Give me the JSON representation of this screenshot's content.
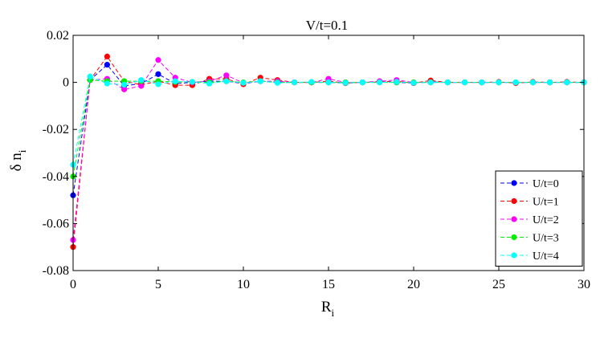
{
  "chart_data": {
    "type": "line",
    "title": "V/t=0.1",
    "xlabel": {
      "main": "R",
      "sub": "i"
    },
    "ylabel": {
      "main": "δ n",
      "sub": "i"
    },
    "xlim": [
      0,
      30
    ],
    "ylim": [
      -0.08,
      0.02
    ],
    "xticks": [
      0,
      5,
      10,
      15,
      20,
      25,
      30
    ],
    "xtick_labels": [
      "0",
      "5",
      "10",
      "15",
      "20",
      "25",
      "30"
    ],
    "yticks": [
      -0.08,
      -0.06,
      -0.04,
      -0.02,
      0,
      0.02
    ],
    "ytick_labels": [
      "-0.08",
      "-0.06",
      "-0.04",
      "-0.02",
      "0",
      "0.02"
    ],
    "grid": false,
    "legend_position": "bottom-right",
    "line_style": "dashed with circle markers",
    "x": [
      0,
      1,
      2,
      3,
      4,
      5,
      6,
      7,
      8,
      9,
      10,
      11,
      12,
      13,
      14,
      15,
      16,
      17,
      18,
      19,
      20,
      21,
      22,
      23,
      24,
      25,
      26,
      27,
      28,
      29,
      30
    ],
    "series": [
      {
        "name": "U/t=0",
        "color": "#0000ff",
        "values": [
          -0.048,
          0.001,
          0.0075,
          -0.0015,
          -0.0005,
          0.0035,
          -0.0005,
          0.0,
          0.0005,
          0.0005,
          -0.0005,
          0.0005,
          0.0,
          0.0,
          0.0,
          0.0,
          -0.0003,
          0.0,
          0.0002,
          0.0,
          -0.0003,
          0.0002,
          0.0,
          0.0,
          0.0,
          0.0,
          0.0,
          0.0,
          0.0,
          0.0,
          0.0
        ]
      },
      {
        "name": "U/t=1",
        "color": "#ff0000",
        "values": [
          -0.07,
          0.001,
          0.011,
          0.0005,
          -0.001,
          0.0005,
          -0.0012,
          -0.0012,
          0.0015,
          0.0015,
          -0.0008,
          0.002,
          0.001,
          0.0,
          0.0,
          0.0005,
          -0.0003,
          0.0,
          0.0002,
          0.0005,
          -0.0003,
          0.0008,
          0.0,
          0.0,
          0.0,
          0.0002,
          -0.0003,
          0.0002,
          0.0,
          0.0002,
          0.0
        ]
      },
      {
        "name": "U/t=2",
        "color": "#ff00ff",
        "values": [
          -0.067,
          0.001,
          0.0015,
          -0.003,
          -0.0015,
          0.0095,
          0.002,
          0.0,
          0.0005,
          0.003,
          -0.0002,
          0.0005,
          0.0005,
          0.0,
          0.0,
          0.0015,
          0.0,
          0.0,
          0.0005,
          0.001,
          0.0,
          0.0,
          0.0,
          0.0,
          0.0,
          0.0,
          0.0,
          0.0,
          0.0,
          0.0,
          0.0
        ]
      },
      {
        "name": "U/t=3",
        "color": "#00ee00",
        "values": [
          -0.04,
          0.001,
          0.0005,
          0.0005,
          0.0005,
          0.0005,
          0.0002,
          0.0002,
          0.0,
          0.0005,
          0.0,
          0.0005,
          0.0,
          0.0,
          0.0,
          0.0,
          0.0,
          0.0,
          0.0,
          0.0,
          0.0,
          0.0,
          0.0,
          0.0,
          0.0,
          0.0,
          0.0,
          0.0,
          0.0,
          0.0,
          0.0
        ]
      },
      {
        "name": "U/t=4",
        "color": "#00ffff",
        "values": [
          -0.035,
          0.0025,
          -0.0005,
          -0.001,
          0.001,
          -0.0008,
          0.0005,
          0.0002,
          -0.0005,
          0.0005,
          -0.0002,
          0.0005,
          -0.0002,
          0.0,
          0.0002,
          0.0,
          -0.0002,
          0.0,
          0.0,
          0.0002,
          -0.0002,
          0.0,
          0.0,
          0.0,
          0.0,
          0.0,
          0.0,
          0.0,
          0.0,
          0.0,
          0.0
        ]
      }
    ]
  }
}
